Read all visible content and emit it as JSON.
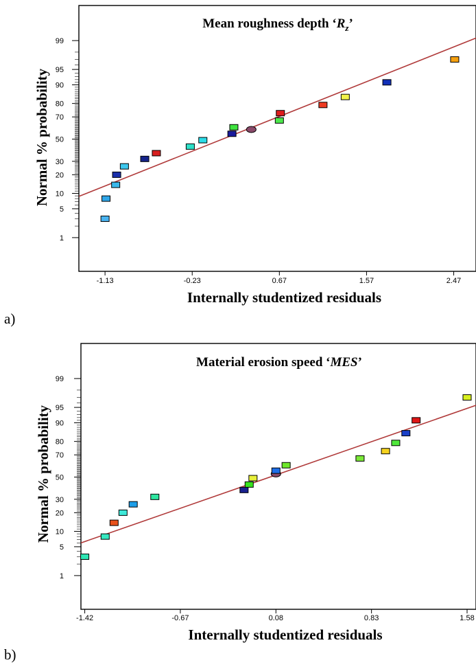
{
  "chart_data": [
    {
      "type": "scatter",
      "panel_label": "a)",
      "title_main": "Mean roughness depth ‘",
      "title_var": "R",
      "title_sub": "z",
      "title_end": "’",
      "xlabel": "Internally studentized residuals",
      "ylabel": "Normal % probability",
      "x_ticks": [
        "-1.13",
        "-0.23",
        "0.67",
        "1.57",
        "2.47"
      ],
      "y_ticks": [
        "1",
        "5",
        "10",
        "20",
        "30",
        "50",
        "70",
        "80",
        "90",
        "95",
        "99"
      ],
      "xlim": [
        -1.4,
        2.7
      ],
      "ylim_percent": [
        0.1,
        99.9
      ],
      "grid": false,
      "fit_line": {
        "x": [
          -1.4,
          2.7
        ],
        "y": [
          8.8,
          99.15
        ],
        "color": "#b03a3a"
      },
      "points": [
        {
          "x": -1.13,
          "y": 3,
          "color": "#49b3f0"
        },
        {
          "x": -1.12,
          "y": 8,
          "color": "#2fa6e8"
        },
        {
          "x": -1.02,
          "y": 14,
          "color": "#3ab8ea"
        },
        {
          "x": -1.01,
          "y": 20,
          "color": "#1a2faa"
        },
        {
          "x": -0.93,
          "y": 26,
          "color": "#3dc8ee"
        },
        {
          "x": -0.72,
          "y": 32,
          "color": "#15238a"
        },
        {
          "x": -0.6,
          "y": 37,
          "color": "#d81f1f"
        },
        {
          "x": -0.25,
          "y": 43,
          "color": "#2ee0c8"
        },
        {
          "x": -0.12,
          "y": 49,
          "color": "#2cdce8"
        },
        {
          "x": 0.18,
          "y": 55,
          "color": "#1a1a9c"
        },
        {
          "x": 0.2,
          "y": 61,
          "color": "#3fe33f"
        },
        {
          "x": 0.38,
          "y": 59,
          "color": "#8a4a6a",
          "shape": "ellipse"
        },
        {
          "x": 0.67,
          "y": 67,
          "color": "#4ce84c"
        },
        {
          "x": 0.68,
          "y": 73,
          "color": "#e01d1d"
        },
        {
          "x": 1.12,
          "y": 79,
          "color": "#ee3b22"
        },
        {
          "x": 1.35,
          "y": 84,
          "color": "#f2f24a"
        },
        {
          "x": 1.78,
          "y": 91,
          "color": "#1230b8"
        },
        {
          "x": 2.48,
          "y": 97,
          "color": "#f5a010"
        }
      ]
    },
    {
      "type": "scatter",
      "panel_label": "b)",
      "title_main": "Material erosion speed ‘",
      "title_var": "MES",
      "title_end": "’",
      "xlabel": "Internally studentized residuals",
      "ylabel": "Normal % probability",
      "x_ticks": [
        "-1.42",
        "-0.67",
        "0.08",
        "0.83",
        "1.58"
      ],
      "y_ticks": [
        "1",
        "5",
        "10",
        "20",
        "30",
        "50",
        "70",
        "80",
        "90",
        "95",
        "99"
      ],
      "xlim": [
        -1.45,
        1.65
      ],
      "ylim_percent": [
        0.1,
        99.9
      ],
      "grid": false,
      "fit_line": {
        "x": [
          -1.45,
          1.65
        ],
        "y": [
          6.0,
          95.5
        ],
        "color": "#b03a3a"
      },
      "points": [
        {
          "x": -1.42,
          "y": 3,
          "color": "#2ee6b4"
        },
        {
          "x": -1.26,
          "y": 8,
          "color": "#36e8c0"
        },
        {
          "x": -1.19,
          "y": 14,
          "color": "#e8501a"
        },
        {
          "x": -1.12,
          "y": 20,
          "color": "#3ee8d8"
        },
        {
          "x": -1.04,
          "y": 26,
          "color": "#1e9ee8"
        },
        {
          "x": -0.87,
          "y": 32,
          "color": "#2ee6a0"
        },
        {
          "x": -0.17,
          "y": 38,
          "color": "#18208e"
        },
        {
          "x": -0.13,
          "y": 43,
          "color": "#37e21e"
        },
        {
          "x": -0.1,
          "y": 49,
          "color": "#e8f03a"
        },
        {
          "x": 0.08,
          "y": 53,
          "color": "#8a4a6a",
          "shape": "ellipse"
        },
        {
          "x": 0.08,
          "y": 56,
          "color": "#1e6ee8"
        },
        {
          "x": 0.16,
          "y": 61,
          "color": "#6ee82a"
        },
        {
          "x": 0.74,
          "y": 67,
          "color": "#7ae838"
        },
        {
          "x": 0.94,
          "y": 73,
          "color": "#f5d21e"
        },
        {
          "x": 1.02,
          "y": 79,
          "color": "#4ee83a"
        },
        {
          "x": 1.1,
          "y": 85,
          "color": "#1a40c8"
        },
        {
          "x": 1.18,
          "y": 91,
          "color": "#e01616"
        },
        {
          "x": 1.58,
          "y": 97,
          "color": "#d8f020"
        }
      ]
    }
  ]
}
